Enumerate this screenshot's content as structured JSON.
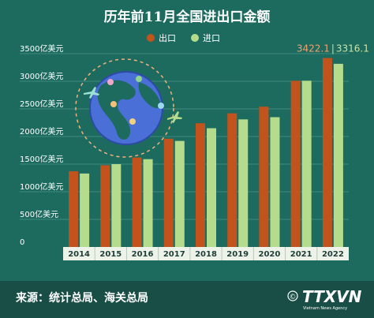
{
  "colors": {
    "background": "#1d6b5f",
    "gridline": "#3f8a7e",
    "export": "#c2531c",
    "import": "#b5dc8c",
    "axis_band": "#eef3ea",
    "footer": "#184e46"
  },
  "footer": {
    "source": "来源：统计总局、海关总局",
    "agency": "TTXVN",
    "agency_sub": "Vietnam News Agency",
    "copyright_symbol": "©"
  },
  "decoration": {
    "globe_icon": "globe-with-airplanes-icon"
  },
  "chart_data": {
    "type": "bar",
    "title": "历年前11月全国进出口金额",
    "categories": [
      "2014",
      "2015",
      "2016",
      "2017",
      "2018",
      "2019",
      "2020",
      "2021",
      "2022"
    ],
    "series": [
      {
        "name": "出口",
        "values": [
          1370,
          1480,
          1620,
          1960,
          2240,
          2420,
          2540,
          3010,
          3422.1
        ]
      },
      {
        "name": "进口",
        "values": [
          1330,
          1500,
          1590,
          1920,
          2150,
          2310,
          2350,
          3010,
          3316.1
        ]
      }
    ],
    "data_labels": {
      "export": "3422.1",
      "import": "3316.1",
      "separator": "|"
    },
    "y_ticks": [
      0,
      500,
      1000,
      1500,
      2000,
      2500,
      3000,
      3500
    ],
    "y_tick_labels": [
      "0",
      "500亿美元",
      "1000亿美元",
      "1500亿美元",
      "2000亿美元",
      "2500亿美元",
      "3000亿美元",
      "3500亿美元"
    ],
    "ylim": [
      0,
      3500
    ],
    "grid": true,
    "legend_position": "top-center"
  }
}
